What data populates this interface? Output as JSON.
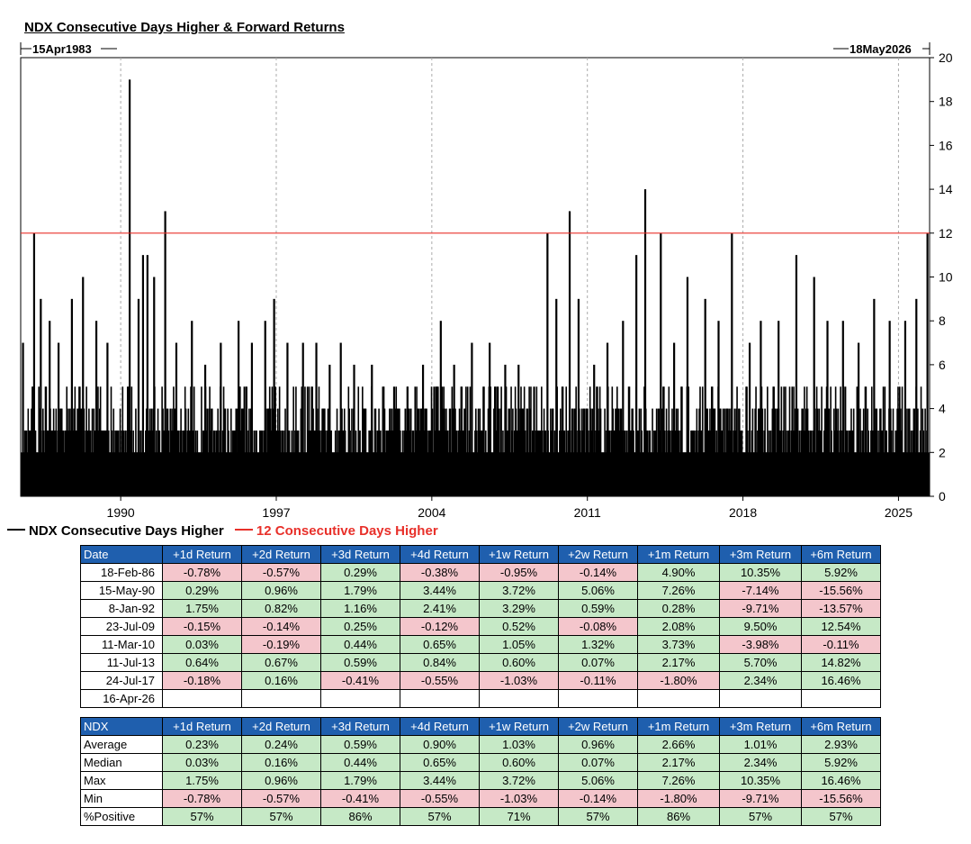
{
  "title": "NDX Consecutive Days Higher & Forward Returns",
  "start_label": "15Apr1983",
  "end_label": "18May2026",
  "colors": {
    "series": "#000000",
    "threshold": "#e8302a",
    "header_bg": "#1f5fae",
    "pos_bg": "#c6e9c6",
    "neg_bg": "#f4c6cc"
  },
  "legend": {
    "series": "NDX Consecutive Days Higher",
    "threshold": "12 Consecutive Days Higher"
  },
  "chart_data": {
    "type": "bar",
    "x_range": [
      1985.5,
      2026.4
    ],
    "ylim": [
      0,
      20
    ],
    "yticks": [
      "0",
      "2",
      "4",
      "6",
      "8",
      "10",
      "12",
      "14",
      "16",
      "18",
      "20"
    ],
    "xticks": [
      "1990",
      "1997",
      "2004",
      "2011",
      "2018",
      "2025"
    ],
    "xtick_values": [
      1990,
      1997,
      2004,
      2011,
      2018,
      2025
    ],
    "threshold": 12,
    "grid": "vertical dashed at year ticks",
    "legend_position": "bottom-left",
    "series": [
      {
        "name": "NDX Consecutive Days Higher",
        "peaks": [
          {
            "x": 1985.6,
            "y": 7
          },
          {
            "x": 1986.1,
            "y": 12
          },
          {
            "x": 1986.4,
            "y": 9
          },
          {
            "x": 1986.8,
            "y": 8
          },
          {
            "x": 1987.2,
            "y": 7
          },
          {
            "x": 1987.8,
            "y": 9
          },
          {
            "x": 1988.3,
            "y": 10
          },
          {
            "x": 1988.9,
            "y": 8
          },
          {
            "x": 1989.4,
            "y": 7
          },
          {
            "x": 1990.4,
            "y": 19
          },
          {
            "x": 1990.8,
            "y": 9
          },
          {
            "x": 1991.0,
            "y": 11
          },
          {
            "x": 1991.2,
            "y": 11
          },
          {
            "x": 1991.5,
            "y": 10
          },
          {
            "x": 1992.0,
            "y": 13
          },
          {
            "x": 1992.5,
            "y": 7
          },
          {
            "x": 1993.2,
            "y": 8
          },
          {
            "x": 1993.8,
            "y": 6
          },
          {
            "x": 1994.5,
            "y": 7
          },
          {
            "x": 1995.3,
            "y": 8
          },
          {
            "x": 1995.9,
            "y": 7
          },
          {
            "x": 1996.5,
            "y": 8
          },
          {
            "x": 1996.9,
            "y": 9
          },
          {
            "x": 1997.5,
            "y": 7
          },
          {
            "x": 1998.2,
            "y": 7
          },
          {
            "x": 1998.8,
            "y": 7
          },
          {
            "x": 1999.4,
            "y": 6
          },
          {
            "x": 1999.9,
            "y": 7
          },
          {
            "x": 2000.5,
            "y": 6
          },
          {
            "x": 2001.3,
            "y": 6
          },
          {
            "x": 2001.8,
            "y": 5
          },
          {
            "x": 2002.3,
            "y": 5
          },
          {
            "x": 2002.9,
            "y": 5
          },
          {
            "x": 2003.6,
            "y": 6
          },
          {
            "x": 2004.4,
            "y": 8
          },
          {
            "x": 2005.0,
            "y": 6
          },
          {
            "x": 2005.8,
            "y": 7
          },
          {
            "x": 2006.6,
            "y": 7
          },
          {
            "x": 2007.3,
            "y": 6
          },
          {
            "x": 2007.9,
            "y": 6
          },
          {
            "x": 2008.6,
            "y": 5
          },
          {
            "x": 2009.2,
            "y": 12
          },
          {
            "x": 2009.6,
            "y": 9
          },
          {
            "x": 2010.2,
            "y": 13
          },
          {
            "x": 2010.6,
            "y": 9
          },
          {
            "x": 2011.3,
            "y": 6
          },
          {
            "x": 2011.9,
            "y": 7
          },
          {
            "x": 2012.6,
            "y": 8
          },
          {
            "x": 2013.2,
            "y": 11
          },
          {
            "x": 2013.6,
            "y": 14
          },
          {
            "x": 2014.3,
            "y": 12
          },
          {
            "x": 2014.9,
            "y": 7
          },
          {
            "x": 2015.5,
            "y": 10
          },
          {
            "x": 2016.3,
            "y": 9
          },
          {
            "x": 2016.9,
            "y": 8
          },
          {
            "x": 2017.5,
            "y": 12
          },
          {
            "x": 2018.3,
            "y": 7
          },
          {
            "x": 2018.8,
            "y": 8
          },
          {
            "x": 2019.6,
            "y": 8
          },
          {
            "x": 2020.4,
            "y": 11
          },
          {
            "x": 2021.2,
            "y": 10
          },
          {
            "x": 2021.8,
            "y": 8
          },
          {
            "x": 2022.5,
            "y": 8
          },
          {
            "x": 2023.2,
            "y": 7
          },
          {
            "x": 2023.9,
            "y": 9
          },
          {
            "x": 2024.6,
            "y": 8
          },
          {
            "x": 2025.3,
            "y": 8
          },
          {
            "x": 2025.8,
            "y": 9
          },
          {
            "x": 2026.3,
            "y": 12
          }
        ]
      }
    ]
  },
  "table": {
    "headers": [
      "Date",
      "+1d Return",
      "+2d Return",
      "+3d Return",
      "+4d Return",
      "+1w Return",
      "+2w Return",
      "+1m Return",
      "+3m Return",
      "+6m Return"
    ],
    "rows": [
      {
        "date": "18-Feb-86",
        "values": [
          "-0.78%",
          "-0.57%",
          "0.29%",
          "-0.38%",
          "-0.95%",
          "-0.14%",
          "4.90%",
          "10.35%",
          "5.92%"
        ]
      },
      {
        "date": "15-May-90",
        "values": [
          "0.29%",
          "0.96%",
          "1.79%",
          "3.44%",
          "3.72%",
          "5.06%",
          "7.26%",
          "-7.14%",
          "-15.56%"
        ]
      },
      {
        "date": "8-Jan-92",
        "values": [
          "1.75%",
          "0.82%",
          "1.16%",
          "2.41%",
          "3.29%",
          "0.59%",
          "0.28%",
          "-9.71%",
          "-13.57%"
        ]
      },
      {
        "date": "23-Jul-09",
        "values": [
          "-0.15%",
          "-0.14%",
          "0.25%",
          "-0.12%",
          "0.52%",
          "-0.08%",
          "2.08%",
          "9.50%",
          "12.54%"
        ]
      },
      {
        "date": "11-Mar-10",
        "values": [
          "0.03%",
          "-0.19%",
          "0.44%",
          "0.65%",
          "1.05%",
          "1.32%",
          "3.73%",
          "-3.98%",
          "-0.11%"
        ]
      },
      {
        "date": "11-Jul-13",
        "values": [
          "0.64%",
          "0.67%",
          "0.59%",
          "0.84%",
          "0.60%",
          "0.07%",
          "2.17%",
          "5.70%",
          "14.82%"
        ]
      },
      {
        "date": "24-Jul-17",
        "values": [
          "-0.18%",
          "0.16%",
          "-0.41%",
          "-0.55%",
          "-1.03%",
          "-0.11%",
          "-1.80%",
          "2.34%",
          "16.46%"
        ]
      },
      {
        "date": "16-Apr-26",
        "values": [
          "",
          "",
          "",
          "",
          "",
          "",
          "",
          "",
          ""
        ]
      }
    ]
  },
  "stats": {
    "headers": [
      "NDX",
      "+1d Return",
      "+2d Return",
      "+3d Return",
      "+4d Return",
      "+1w Return",
      "+2w Return",
      "+1m Return",
      "+3m Return",
      "+6m Return"
    ],
    "rows": [
      {
        "label": "Average",
        "values": [
          "0.23%",
          "0.24%",
          "0.59%",
          "0.90%",
          "1.03%",
          "0.96%",
          "2.66%",
          "1.01%",
          "2.93%"
        ]
      },
      {
        "label": "Median",
        "values": [
          "0.03%",
          "0.16%",
          "0.44%",
          "0.65%",
          "0.60%",
          "0.07%",
          "2.17%",
          "2.34%",
          "5.92%"
        ]
      },
      {
        "label": "Max",
        "values": [
          "1.75%",
          "0.96%",
          "1.79%",
          "3.44%",
          "3.72%",
          "5.06%",
          "7.26%",
          "10.35%",
          "16.46%"
        ]
      },
      {
        "label": "Min",
        "values": [
          "-0.78%",
          "-0.57%",
          "-0.41%",
          "-0.55%",
          "-1.03%",
          "-0.14%",
          "-1.80%",
          "-9.71%",
          "-15.56%"
        ]
      },
      {
        "label": "%Positive",
        "values": [
          "57%",
          "57%",
          "86%",
          "57%",
          "71%",
          "57%",
          "86%",
          "57%",
          "57%"
        ]
      }
    ]
  }
}
